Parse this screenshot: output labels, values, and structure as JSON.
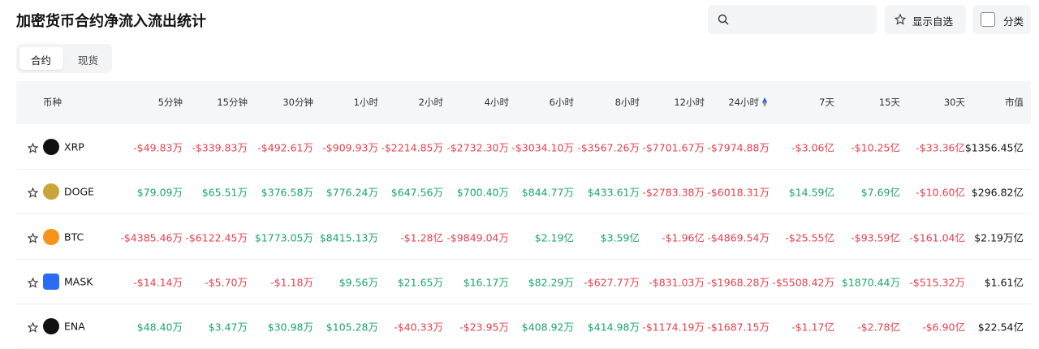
{
  "header": {
    "title": "加密货币合约净流入流出统计",
    "buttons": [
      "显示自选",
      "分类"
    ]
  },
  "tabs": [
    "合约",
    "现货"
  ],
  "table": {
    "columns": [
      "币种",
      "5分钟",
      "15分钟",
      "30分钟",
      "1小时",
      "2小时",
      "4小时",
      "6小时",
      "8小时",
      "12小时",
      "24小时",
      "7天",
      "15天",
      "30天",
      "市值"
    ],
    "rows": [
      [
        "XRP",
        "-$49.83万",
        "-$339.83万",
        "-$492.61万",
        "-$909.93万",
        "-$2214.85万",
        "-$2732.30万",
        "-$3034.10万",
        "-$3567.26万",
        "-$7701.67万",
        "-$7974.88万",
        "-$3.06亿",
        "-$10.25亿",
        "-$33.36亿",
        "$1356.45亿"
      ],
      [
        "DOGE",
        "$79.09万",
        "$65.51万",
        "$376.58万",
        "$776.24万",
        "$647.56万",
        "$700.40万",
        "$844.77万",
        "$433.61万",
        "-$2783.38万",
        "-$6018.31万",
        "$14.59亿",
        "$7.69亿",
        "-$10.60亿",
        "$296.82亿"
      ],
      [
        "BTC",
        "-$4385.46万",
        "-$6122.45万",
        "$1773.05万",
        "$8415.13万",
        "-$1.28亿",
        "-$9849.04万",
        "$2.19亿",
        "$3.59亿",
        "-$1.96亿",
        "-$4869.54万",
        "-$25.55亿",
        "-$93.59亿",
        "-$161.04亿",
        "$2.19万亿"
      ],
      [
        "MASK",
        "-$14.14万",
        "-$5.70万",
        "-$1.18万",
        "$9.56万",
        "$21.65万",
        "$16.17万",
        "$82.29万",
        "-$627.77万",
        "-$831.03万",
        "-$1968.28万",
        "-$5508.42万",
        "$1870.44万",
        "-$515.32万",
        "$1.61亿"
      ],
      [
        "ENA",
        "$48.40万",
        "$3.47万",
        "$30.98万",
        "$105.28万",
        "-$40.33万",
        "-$23.95万",
        "$408.92万",
        "$414.98万",
        "-$1174.19万",
        "-$1687.15万",
        "-$1.17亿",
        "-$2.78亿",
        "-$6.90亿",
        "$22.54亿"
      ]
    ]
  }
}
